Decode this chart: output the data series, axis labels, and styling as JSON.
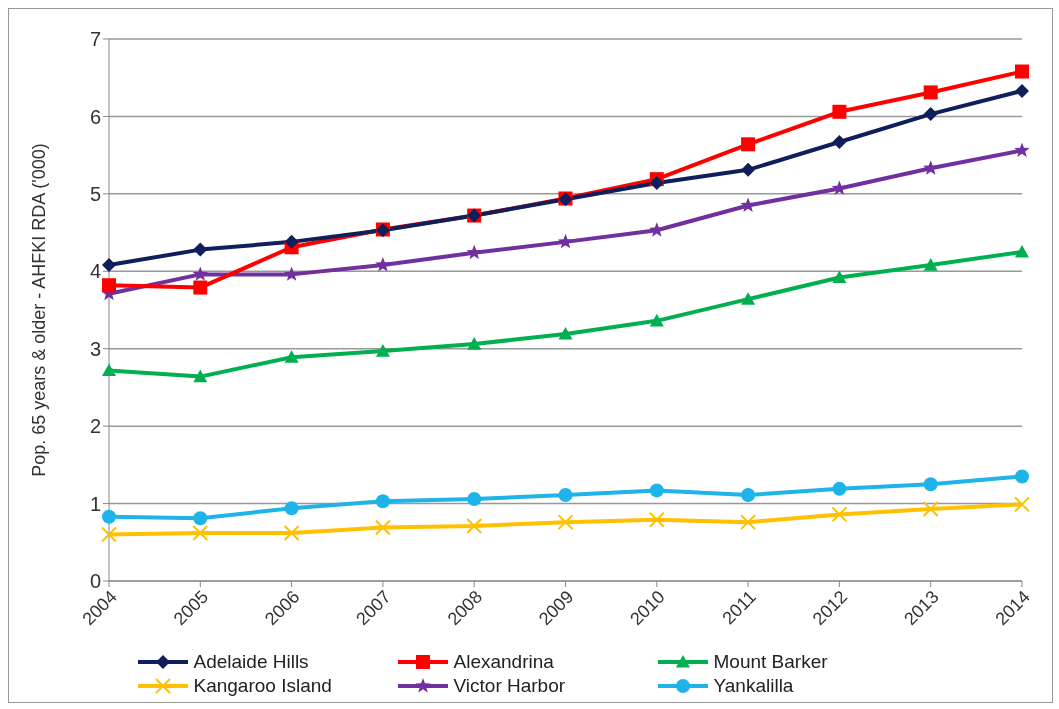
{
  "chart_data": {
    "type": "line",
    "ylabel": "Pop. 65 years & older - AHFKI RDA ('000)",
    "categories": [
      "2004",
      "2005",
      "2006",
      "2007",
      "2008",
      "2009",
      "2010",
      "2011",
      "2012",
      "2013",
      "2014"
    ],
    "ylim": [
      0,
      7
    ],
    "yticks": [
      0,
      1,
      2,
      3,
      4,
      5,
      6,
      7
    ],
    "grid": "y",
    "legend": "bottom",
    "line_style": "solid",
    "series": [
      {
        "name": "Adelaide Hills",
        "color": "#0f1f5c",
        "marker": "diamond",
        "values": [
          4.08,
          4.28,
          4.38,
          4.53,
          4.72,
          4.93,
          5.14,
          5.31,
          5.67,
          6.03,
          6.33
        ]
      },
      {
        "name": "Alexandrina",
        "color": "#ff0000",
        "marker": "square",
        "values": [
          3.82,
          3.79,
          4.31,
          4.54,
          4.72,
          4.94,
          5.19,
          5.64,
          6.06,
          6.31,
          6.58
        ]
      },
      {
        "name": "Mount Barker",
        "color": "#00b050",
        "marker": "triangle",
        "values": [
          2.72,
          2.64,
          2.89,
          2.97,
          3.06,
          3.19,
          3.36,
          3.64,
          3.92,
          4.08,
          4.25
        ]
      },
      {
        "name": "Kangaroo Island",
        "color": "#ffc000",
        "marker": "cross",
        "values": [
          0.6,
          0.62,
          0.62,
          0.69,
          0.71,
          0.76,
          0.79,
          0.76,
          0.86,
          0.93,
          0.99
        ]
      },
      {
        "name": "Victor Harbor",
        "color": "#7030a0",
        "marker": "star",
        "values": [
          3.71,
          3.96,
          3.96,
          4.08,
          4.24,
          4.38,
          4.53,
          4.85,
          5.07,
          5.33,
          5.56
        ]
      },
      {
        "name": "Yankalilla",
        "color": "#1eb4ea",
        "marker": "circle",
        "values": [
          0.83,
          0.81,
          0.94,
          1.03,
          1.06,
          1.11,
          1.17,
          1.11,
          1.19,
          1.25,
          1.35
        ]
      }
    ]
  }
}
